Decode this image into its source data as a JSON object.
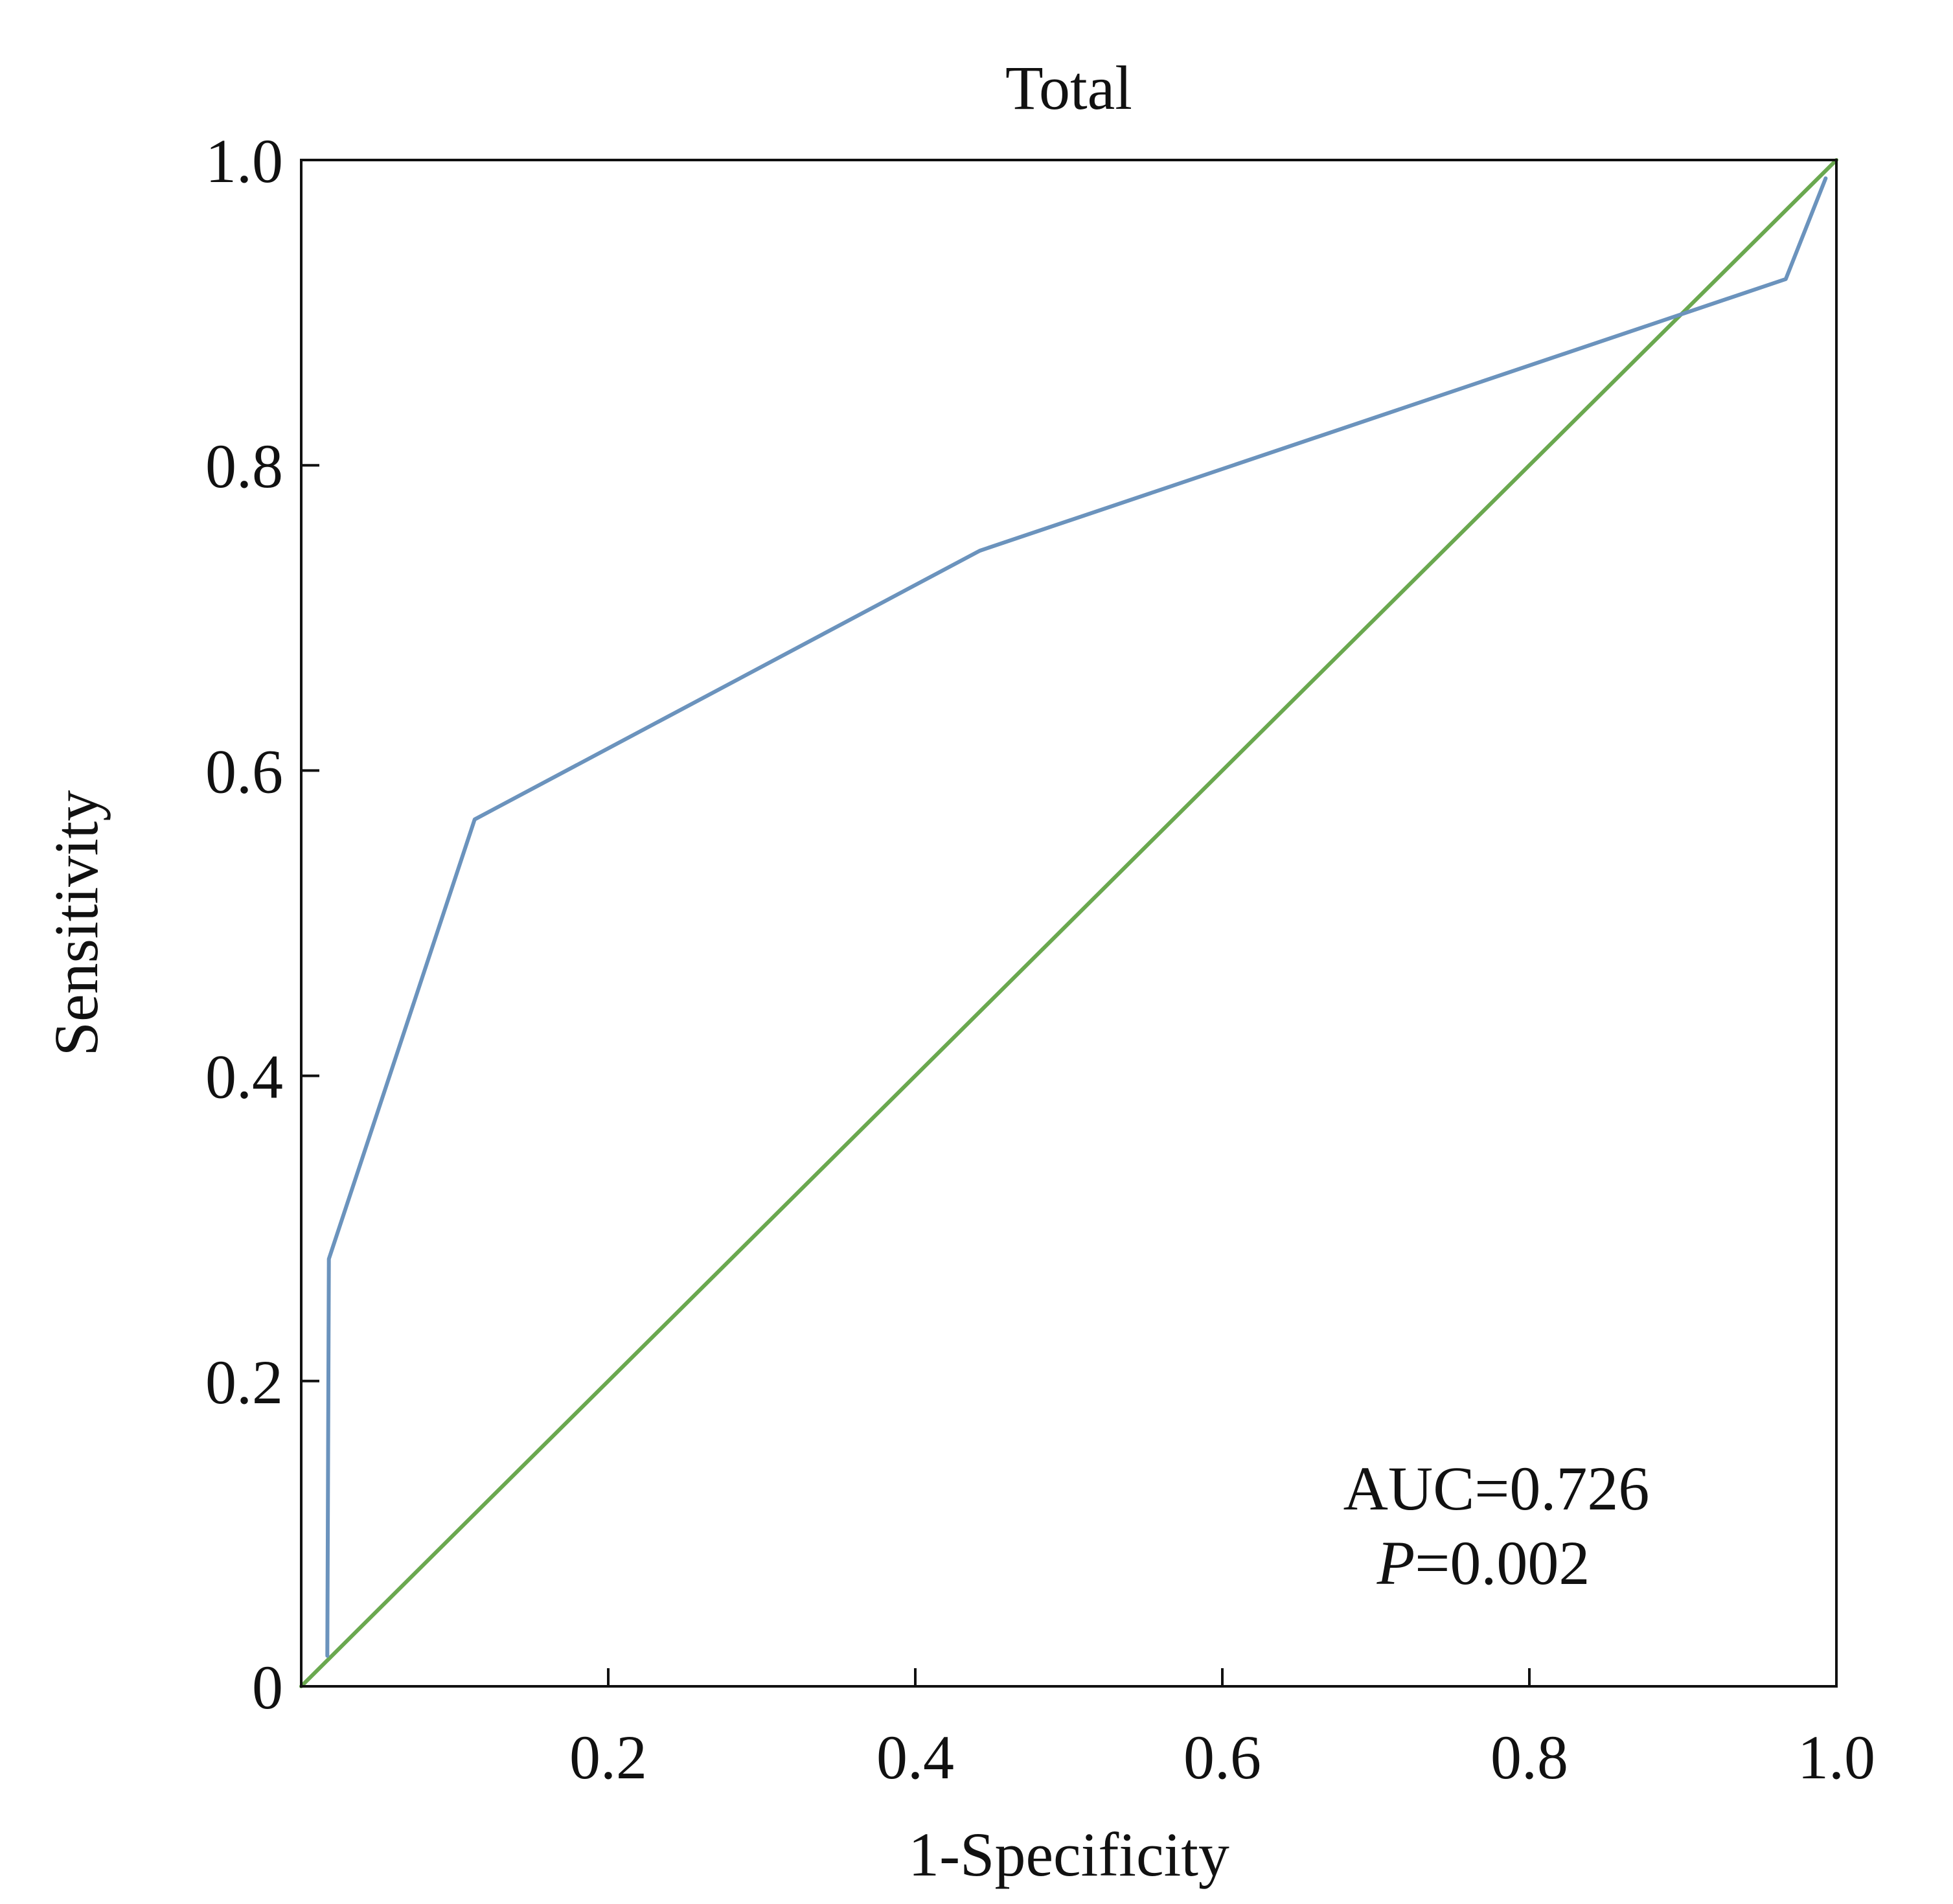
{
  "chart_data": {
    "type": "line",
    "title": "Total",
    "xlabel": "1-Specificity",
    "ylabel": "Sensitivity",
    "xlim": [
      0,
      1
    ],
    "ylim": [
      0,
      1
    ],
    "x_ticks": [
      0.2,
      0.4,
      0.6,
      0.8,
      1.0
    ],
    "x_tick_labels": [
      "0.2",
      "0.4",
      "0.6",
      "0.8",
      "1.0"
    ],
    "y_ticks": [
      0,
      0.2,
      0.4,
      0.6,
      0.8,
      1.0
    ],
    "y_tick_labels": [
      "0",
      "0.2",
      "0.4",
      "0.6",
      "0.8",
      "1.0"
    ],
    "grid": false,
    "legend": "none",
    "series": [
      {
        "color": "#6b93bd",
        "x": [
          0.017,
          0.017,
          0.018,
          0.113,
          0.442,
          0.967,
          0.993
        ],
        "y": [
          0.02,
          0.02,
          0.28,
          0.568,
          0.744,
          0.922,
          0.988
        ]
      },
      {
        "color": "#6aa84f",
        "x": [
          0,
          1
        ],
        "y": [
          0,
          1
        ]
      }
    ],
    "annotation": {
      "auc": "AUC=0.726",
      "p_label": "P",
      "p_value": "=0.002"
    }
  }
}
